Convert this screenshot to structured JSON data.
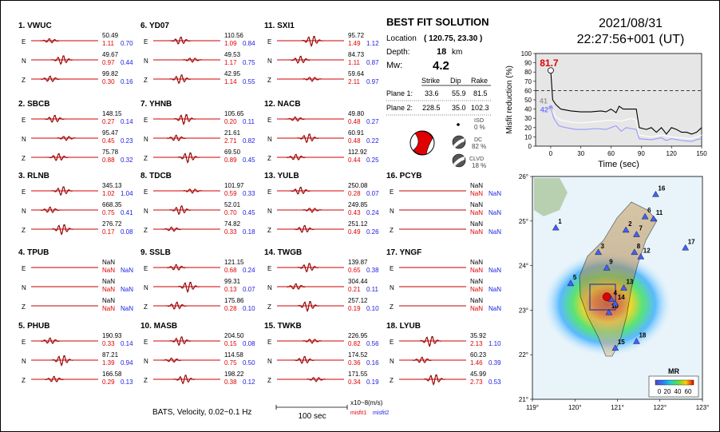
{
  "datetime": {
    "date": "2021/08/31",
    "time": "22:27:56+001  (UT)"
  },
  "solution": {
    "title": "BEST FIT SOLUTION",
    "location_label": "Location",
    "location_value": "( 120.75, 23.30 )",
    "depth_label": "Depth:",
    "depth_value": "18",
    "depth_unit": "km",
    "mw_label": "Mw:",
    "mw_value": "4.2",
    "headers": [
      "Strike",
      "Dip",
      "Rake"
    ],
    "planes": [
      {
        "label": "Plane 1:",
        "values": [
          "33.6",
          "55.9",
          "81.5"
        ]
      },
      {
        "label": "Plane 2:",
        "values": [
          "228.5",
          "35.0",
          "102.3"
        ]
      }
    ],
    "iso_label": "ISO",
    "iso_value": "0 %",
    "dc_label": "DC",
    "dc_value": "82 %",
    "clvd_label": "CLVD",
    "clvd_value": "18 %"
  },
  "footer": {
    "caption": "BATS, Velocity, 0.02~0.1 Hz",
    "scale_label": "100 sec",
    "units": "x10~8(m/s)",
    "misfit1": "misfit1",
    "misfit2": "misfit2"
  },
  "stations": [
    {
      "label": "1.  VWUC",
      "rows": [
        [
          "E",
          "50.49",
          "1.11",
          "0.70"
        ],
        [
          "N",
          "49.67",
          "0.97",
          "0.44"
        ],
        [
          "Z",
          "99.82",
          "0.30",
          "0.16"
        ]
      ]
    },
    {
      "label": "2.  SBCB",
      "rows": [
        [
          "E",
          "148.15",
          "0.27",
          "0.14"
        ],
        [
          "N",
          "95.47",
          "0.45",
          "0.23"
        ],
        [
          "Z",
          "75.78",
          "0.88",
          "0.32"
        ]
      ]
    },
    {
      "label": "3.  RLNB",
      "rows": [
        [
          "E",
          "345.13",
          "1.02",
          "1.04"
        ],
        [
          "N",
          "668.35",
          "0.75",
          "0.41"
        ],
        [
          "Z",
          "276.72",
          "0.17",
          "0.08"
        ]
      ]
    },
    {
      "label": "4.  TPUB",
      "rows": [
        [
          "E",
          "NaN",
          "NaN",
          "NaN"
        ],
        [
          "N",
          "NaN",
          "NaN",
          "NaN"
        ],
        [
          "Z",
          "NaN",
          "NaN",
          "NaN"
        ]
      ]
    },
    {
      "label": "5.  PHUB",
      "rows": [
        [
          "E",
          "190.93",
          "0.33",
          "0.14"
        ],
        [
          "N",
          "87.21",
          "1.39",
          "0.94"
        ],
        [
          "Z",
          "166.58",
          "0.29",
          "0.13"
        ]
      ]
    },
    {
      "label": "6.  YD07",
      "rows": [
        [
          "E",
          "110.56",
          "1.09",
          "0.84"
        ],
        [
          "N",
          "49.53",
          "1.17",
          "0.75"
        ],
        [
          "Z",
          "42.95",
          "1.14",
          "0.55"
        ]
      ]
    },
    {
      "label": "7.  YHNB",
      "rows": [
        [
          "E",
          "105.65",
          "0.20",
          "0.11"
        ],
        [
          "N",
          "21.61",
          "2.71",
          "0.82"
        ],
        [
          "Z",
          "69.50",
          "0.89",
          "0.45"
        ]
      ]
    },
    {
      "label": "8.  TDCB",
      "rows": [
        [
          "E",
          "101.97",
          "0.59",
          "0.33"
        ],
        [
          "N",
          "52.01",
          "0.70",
          "0.45"
        ],
        [
          "Z",
          "74.82",
          "0.33",
          "0.18"
        ]
      ]
    },
    {
      "label": "9.  SSLB",
      "rows": [
        [
          "E",
          "121.15",
          "0.68",
          "0.24"
        ],
        [
          "N",
          "99.31",
          "0.13",
          "0.07"
        ],
        [
          "Z",
          "175.86",
          "0.28",
          "0.10"
        ]
      ]
    },
    {
      "label": "10. MASB",
      "rows": [
        [
          "E",
          "204.50",
          "0.15",
          "0.08"
        ],
        [
          "N",
          "114.58",
          "0.75",
          "0.50"
        ],
        [
          "Z",
          "198.22",
          "0.38",
          "0.12"
        ]
      ]
    },
    {
      "label": "11. SXI1",
      "rows": [
        [
          "E",
          "95.72",
          "1.49",
          "1.12"
        ],
        [
          "N",
          "84.73",
          "1.11",
          "0.87"
        ],
        [
          "Z",
          "59.64",
          "2.11",
          "0.97"
        ]
      ]
    },
    {
      "label": "12. NACB",
      "rows": [
        [
          "E",
          "49.80",
          "0.48",
          "0.27"
        ],
        [
          "N",
          "60.91",
          "0.48",
          "0.22"
        ],
        [
          "Z",
          "112.92",
          "0.44",
          "0.25"
        ]
      ]
    },
    {
      "label": "13. YULB",
      "rows": [
        [
          "E",
          "250.08",
          "0.28",
          "0.07"
        ],
        [
          "N",
          "249.85",
          "0.43",
          "0.24"
        ],
        [
          "Z",
          "251.12",
          "0.49",
          "0.26"
        ]
      ]
    },
    {
      "label": "14. TWGB",
      "rows": [
        [
          "E",
          "139.87",
          "0.65",
          "0.38"
        ],
        [
          "N",
          "304.44",
          "0.21",
          "0.11"
        ],
        [
          "Z",
          "257.12",
          "0.19",
          "0.10"
        ]
      ]
    },
    {
      "label": "15. TWKB",
      "rows": [
        [
          "E",
          "226.95",
          "0.82",
          "0.56"
        ],
        [
          "N",
          "174.52",
          "0.36",
          "0.16"
        ],
        [
          "Z",
          "171.55",
          "0.34",
          "0.19"
        ]
      ]
    },
    {
      "label": "16. PCYB",
      "rows": [
        [
          "E",
          "NaN",
          "NaN",
          "NaN"
        ],
        [
          "N",
          "NaN",
          "NaN",
          "NaN"
        ],
        [
          "Z",
          "NaN",
          "NaN",
          "NaN"
        ]
      ]
    },
    {
      "label": "17. YNGF",
      "rows": [
        [
          "E",
          "NaN",
          "NaN",
          "NaN"
        ],
        [
          "N",
          "NaN",
          "NaN",
          "NaN"
        ],
        [
          "Z",
          "NaN",
          "NaN",
          "NaN"
        ]
      ]
    },
    {
      "label": "18. LYUB",
      "rows": [
        [
          "E",
          "35.92",
          "2.13",
          "1.10"
        ],
        [
          "N",
          "60.23",
          "1.46",
          "0.39"
        ],
        [
          "Z",
          "45.99",
          "2.73",
          "0.53"
        ]
      ]
    }
  ],
  "chart_data": [
    {
      "type": "line",
      "xlabel": "Time (sec)",
      "ylabel": "Misfit reduction (%)",
      "xlim": [
        -15,
        150
      ],
      "ylim": [
        0,
        100
      ],
      "xticks": [
        "0",
        "30",
        "60",
        "90",
        "120",
        "150"
      ],
      "yticks": [
        "0",
        "10",
        "20",
        "30",
        "40",
        "50",
        "60",
        "70",
        "80",
        "90",
        "100"
      ],
      "reference_line": 60,
      "annotations": [
        "81.7",
        "41",
        "42"
      ],
      "series": [
        {
          "color": "#000000",
          "points": [
            [
              0,
              81.7
            ],
            [
              2,
              50
            ],
            [
              5,
              45
            ],
            [
              10,
              40
            ],
            [
              20,
              38
            ],
            [
              30,
              37
            ],
            [
              40,
              37
            ],
            [
              50,
              38
            ],
            [
              55,
              37
            ],
            [
              60,
              40
            ],
            [
              65,
              36
            ],
            [
              68,
              43
            ],
            [
              72,
              40
            ],
            [
              80,
              40
            ],
            [
              85,
              40
            ],
            [
              88,
              20
            ],
            [
              95,
              18
            ],
            [
              100,
              20
            ],
            [
              105,
              15
            ],
            [
              110,
              20
            ],
            [
              115,
              13
            ],
            [
              120,
              20
            ],
            [
              125,
              18
            ],
            [
              130,
              15
            ],
            [
              135,
              15
            ],
            [
              140,
              13
            ],
            [
              145,
              15
            ],
            [
              150,
              20
            ]
          ]
        },
        {
          "color": "#ffffff",
          "points": [
            [
              0,
              41
            ],
            [
              5,
              32
            ],
            [
              10,
              28
            ],
            [
              20,
              26
            ],
            [
              30,
              25
            ],
            [
              40,
              26
            ],
            [
              50,
              27
            ],
            [
              60,
              28
            ],
            [
              70,
              27
            ],
            [
              80,
              30
            ],
            [
              85,
              28
            ],
            [
              88,
              12
            ],
            [
              100,
              10
            ],
            [
              110,
              12
            ],
            [
              120,
              10
            ],
            [
              130,
              9
            ],
            [
              140,
              8
            ],
            [
              150,
              12
            ]
          ]
        },
        {
          "color": "#9999ff",
          "points": [
            [
              0,
              42
            ],
            [
              3,
              30
            ],
            [
              8,
              22
            ],
            [
              15,
              20
            ],
            [
              25,
              18
            ],
            [
              35,
              18
            ],
            [
              45,
              19
            ],
            [
              55,
              18
            ],
            [
              65,
              22
            ],
            [
              70,
              16
            ],
            [
              75,
              20
            ],
            [
              80,
              19
            ],
            [
              85,
              18
            ],
            [
              88,
              8
            ],
            [
              100,
              7
            ],
            [
              110,
              9
            ],
            [
              115,
              6
            ],
            [
              120,
              8
            ],
            [
              130,
              6
            ],
            [
              140,
              5
            ],
            [
              145,
              7
            ],
            [
              150,
              8
            ]
          ]
        }
      ]
    },
    {
      "type": "scatter",
      "colorbar_label": "MR",
      "colorbar_ticks": [
        "0",
        "20",
        "40",
        "60"
      ],
      "xlim": [
        119,
        123
      ],
      "ylim": [
        21,
        26
      ],
      "xticks": [
        "119°",
        "120°",
        "121°",
        "122°",
        "123°"
      ],
      "yticks": [
        "21°",
        "22°",
        "23°",
        "24°",
        "25°",
        "26°"
      ],
      "stations": [
        {
          "label": "1",
          "lon": 119.55,
          "lat": 24.85
        },
        {
          "label": "2",
          "lon": 121.2,
          "lat": 24.8
        },
        {
          "label": "3",
          "lon": 120.55,
          "lat": 24.3
        },
        {
          "label": "4",
          "lon": 120.85,
          "lat": 23.25
        },
        {
          "label": "5",
          "lon": 119.9,
          "lat": 23.6
        },
        {
          "label": "6",
          "lon": 121.65,
          "lat": 25.1
        },
        {
          "label": "7",
          "lon": 121.45,
          "lat": 24.7
        },
        {
          "label": "8",
          "lon": 121.4,
          "lat": 24.3
        },
        {
          "label": "9",
          "lon": 120.75,
          "lat": 23.95
        },
        {
          "label": "10",
          "lon": 120.8,
          "lat": 22.95
        },
        {
          "label": "11",
          "lon": 121.85,
          "lat": 25.05
        },
        {
          "label": "12",
          "lon": 121.55,
          "lat": 24.2
        },
        {
          "label": "13",
          "lon": 121.15,
          "lat": 23.5
        },
        {
          "label": "14",
          "lon": 120.95,
          "lat": 23.15
        },
        {
          "label": "15",
          "lon": 120.95,
          "lat": 22.15
        },
        {
          "label": "16",
          "lon": 121.9,
          "lat": 25.6
        },
        {
          "label": "17",
          "lon": 122.6,
          "lat": 24.4
        },
        {
          "label": "18",
          "lon": 121.45,
          "lat": 22.3
        }
      ],
      "epicenter": {
        "lon": 120.75,
        "lat": 23.3
      }
    }
  ]
}
